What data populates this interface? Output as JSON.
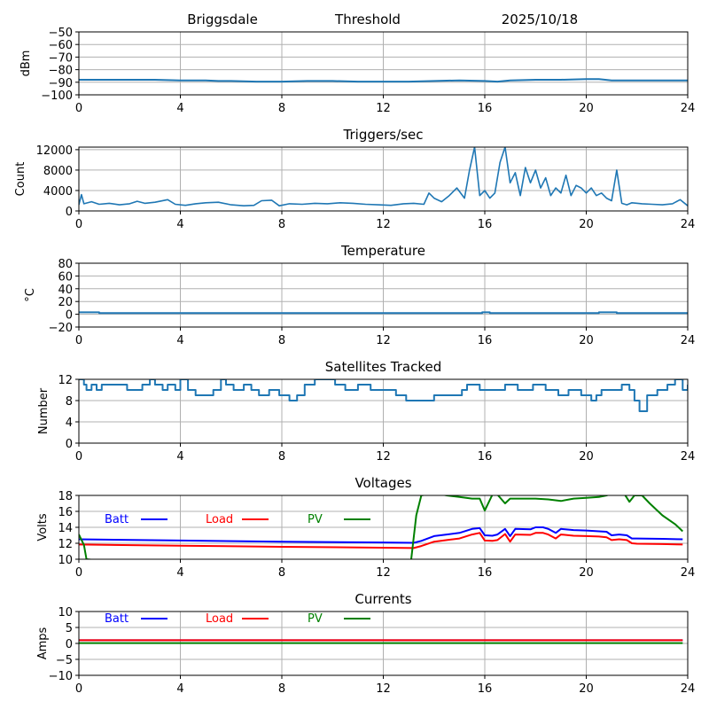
{
  "header": {
    "station": "Briggsdale",
    "mode": "Threshold",
    "date": "2025/10/18"
  },
  "chart_data": [
    {
      "id": "rssi",
      "type": "line",
      "title": "",
      "xlabel": "",
      "ylabel": "dBm",
      "xlim": [
        0,
        24
      ],
      "ylim": [
        -100,
        -50
      ],
      "xticks": [
        0,
        4,
        8,
        12,
        16,
        20,
        24
      ],
      "yticks": [
        -100,
        -90,
        -80,
        -70,
        -60,
        -50
      ],
      "ytick_labels": [
        "−100",
        "−90",
        "−80",
        "−70",
        "−60",
        "−50"
      ],
      "grid": true,
      "series": [
        {
          "name": "dBm",
          "color": "#1f77b4",
          "x": [
            0,
            1,
            2,
            3,
            4,
            5,
            5.5,
            6,
            7,
            8,
            9,
            10,
            11,
            12,
            13,
            14,
            15,
            16,
            16.5,
            17,
            18,
            19,
            20,
            20.5,
            21,
            22,
            23,
            24
          ],
          "y": [
            -88,
            -88,
            -88,
            -88,
            -88.5,
            -88.5,
            -89,
            -89,
            -89.5,
            -89.5,
            -89,
            -89,
            -89.5,
            -89.5,
            -89.5,
            -89,
            -88.5,
            -89,
            -89.5,
            -88.5,
            -88,
            -88,
            -87.5,
            -87.5,
            -88.5,
            -88.5,
            -88.5,
            -88.5
          ]
        }
      ]
    },
    {
      "id": "triggers",
      "type": "line",
      "title": "Triggers/sec",
      "xlabel": "",
      "ylabel": "Count",
      "xlim": [
        0,
        24
      ],
      "ylim": [
        0,
        12500
      ],
      "xticks": [
        0,
        4,
        8,
        12,
        16,
        20,
        24
      ],
      "yticks": [
        0,
        4000,
        8000,
        12000
      ],
      "ytick_labels": [
        "0",
        "4000",
        "8000",
        "12000"
      ],
      "grid": true,
      "series": [
        {
          "name": "Count",
          "color": "#1f77b4",
          "x": [
            0,
            0.1,
            0.2,
            0.5,
            0.8,
            1.2,
            1.6,
            2.0,
            2.3,
            2.6,
            3.0,
            3.5,
            3.8,
            4.2,
            4.6,
            5.0,
            5.5,
            6.0,
            6.5,
            6.9,
            7.2,
            7.6,
            7.9,
            8.3,
            8.8,
            9.3,
            9.8,
            10.3,
            10.8,
            11.3,
            11.8,
            12.3,
            12.8,
            13.2,
            13.6,
            13.8,
            14.0,
            14.3,
            14.6,
            14.9,
            15.2,
            15.4,
            15.6,
            15.8,
            16.0,
            16.2,
            16.4,
            16.6,
            16.8,
            17.0,
            17.2,
            17.4,
            17.6,
            17.8,
            18.0,
            18.2,
            18.4,
            18.6,
            18.8,
            19.0,
            19.2,
            19.4,
            19.6,
            19.8,
            20.0,
            20.2,
            20.4,
            20.6,
            20.8,
            21.0,
            21.2,
            21.4,
            21.6,
            21.8,
            22.2,
            22.6,
            23.0,
            23.4,
            23.7,
            24.0
          ],
          "y": [
            1200,
            3200,
            1400,
            1800,
            1300,
            1500,
            1200,
            1400,
            1900,
            1500,
            1700,
            2200,
            1300,
            1100,
            1400,
            1600,
            1700,
            1200,
            1000,
            1100,
            2000,
            2100,
            1000,
            1400,
            1300,
            1500,
            1400,
            1600,
            1500,
            1300,
            1200,
            1100,
            1400,
            1500,
            1300,
            3500,
            2500,
            1800,
            3000,
            4500,
            2500,
            8000,
            12500,
            3000,
            4000,
            2500,
            3500,
            9500,
            12500,
            5500,
            7500,
            3000,
            8500,
            5500,
            8000,
            4500,
            6500,
            3000,
            4500,
            3500,
            7000,
            3000,
            5000,
            4500,
            3500,
            4500,
            3000,
            3500,
            2500,
            2000,
            8000,
            1500,
            1200,
            1600,
            1400,
            1300,
            1200,
            1400,
            2200,
            1000
          ]
        }
      ]
    },
    {
      "id": "temperature",
      "type": "line",
      "title": "Temperature",
      "xlabel": "",
      "ylabel": "°C",
      "xlim": [
        0,
        24
      ],
      "ylim": [
        -20,
        80
      ],
      "xticks": [
        0,
        4,
        8,
        12,
        16,
        20,
        24
      ],
      "yticks": [
        -20,
        0,
        20,
        40,
        60,
        80
      ],
      "ytick_labels": [
        "−20",
        "0",
        "20",
        "40",
        "60",
        "80"
      ],
      "grid": true,
      "series": [
        {
          "name": "°C",
          "color": "#1f77b4",
          "x": [
            0,
            0.8,
            0.8,
            15.9,
            15.9,
            16.2,
            16.2,
            20.5,
            20.5,
            21.2,
            21.2,
            24
          ],
          "y": [
            3,
            3,
            2,
            2,
            3,
            3,
            2,
            2,
            3,
            3,
            2,
            2
          ]
        }
      ]
    },
    {
      "id": "satellites",
      "type": "line",
      "title": "Satellites Tracked",
      "xlabel": "",
      "ylabel": "Number",
      "xlim": [
        0,
        24
      ],
      "ylim": [
        0,
        12
      ],
      "xticks": [
        0,
        4,
        8,
        12,
        16,
        20,
        24
      ],
      "yticks": [
        0,
        4,
        8,
        12
      ],
      "ytick_labels": [
        "0",
        "4",
        "8",
        "12"
      ],
      "grid": true,
      "series": [
        {
          "name": "Number",
          "color": "#1f77b4",
          "step": true,
          "x": [
            0,
            0.2,
            0.3,
            0.5,
            0.7,
            0.9,
            1.1,
            1.9,
            2.5,
            2.8,
            3.0,
            3.3,
            3.5,
            3.8,
            4.0,
            4.3,
            4.6,
            5.3,
            5.6,
            5.8,
            6.1,
            6.5,
            6.8,
            7.1,
            7.5,
            7.9,
            8.3,
            8.6,
            8.9,
            9.3,
            9.7,
            10.1,
            10.5,
            11.0,
            11.5,
            12.0,
            12.5,
            12.9,
            13.5,
            14.0,
            14.5,
            15.1,
            15.3,
            15.8,
            16.2,
            16.8,
            17.3,
            17.9,
            18.4,
            18.9,
            19.3,
            19.8,
            20.2,
            20.4,
            20.6,
            21.0,
            21.4,
            21.7,
            21.9,
            22.1,
            22.4,
            22.8,
            23.2,
            23.5,
            23.8,
            24.0
          ],
          "y": [
            12,
            11,
            10,
            11,
            10,
            11,
            11,
            10,
            11,
            12,
            11,
            10,
            11,
            10,
            12,
            10,
            9,
            10,
            12,
            11,
            10,
            11,
            10,
            9,
            10,
            9,
            8,
            9,
            11,
            12,
            12,
            11,
            10,
            11,
            10,
            10,
            9,
            8,
            8,
            9,
            9,
            10,
            11,
            10,
            10,
            11,
            10,
            11,
            10,
            9,
            10,
            9,
            8,
            9,
            10,
            10,
            11,
            10,
            8,
            6,
            9,
            10,
            11,
            12,
            10,
            11
          ]
        }
      ]
    },
    {
      "id": "voltages",
      "type": "line",
      "title": "Voltages",
      "xlabel": "",
      "ylabel": "Volts",
      "xlim": [
        0,
        24
      ],
      "ylim": [
        10,
        18
      ],
      "xticks": [
        0,
        4,
        8,
        12,
        16,
        20,
        24
      ],
      "yticks": [
        10,
        12,
        14,
        16,
        18
      ],
      "ytick_labels": [
        "10",
        "12",
        "14",
        "16",
        "18"
      ],
      "grid": true,
      "legend": {
        "placement": "top-left",
        "orientation": "horizontal"
      },
      "series": [
        {
          "name": "Batt",
          "color": "#0000ff",
          "x": [
            0,
            4,
            8,
            12,
            13.2,
            13.5,
            14,
            14.5,
            15,
            15.5,
            15.8,
            16,
            16.3,
            16.5,
            16.8,
            17,
            17.2,
            17.8,
            18,
            18.3,
            18.5,
            18.8,
            19,
            19.5,
            20,
            20.5,
            20.8,
            21,
            21.3,
            21.6,
            21.8,
            22,
            23,
            23.8
          ],
          "y": [
            12.5,
            12.35,
            12.2,
            12.1,
            12.05,
            12.3,
            12.9,
            13.1,
            13.3,
            13.8,
            13.9,
            13.0,
            12.95,
            13.1,
            13.8,
            12.9,
            13.8,
            13.75,
            14.0,
            14.0,
            13.8,
            13.3,
            13.8,
            13.65,
            13.6,
            13.5,
            13.45,
            13.0,
            13.1,
            13.0,
            12.6,
            12.6,
            12.55,
            12.5
          ]
        },
        {
          "name": "Load",
          "color": "#ff0000",
          "x": [
            0,
            4,
            8,
            12,
            13.2,
            13.5,
            14,
            14.5,
            15,
            15.5,
            15.8,
            16,
            16.3,
            16.5,
            16.8,
            17,
            17.2,
            17.8,
            18,
            18.3,
            18.5,
            18.8,
            19,
            19.5,
            20,
            20.5,
            20.8,
            21,
            21.3,
            21.6,
            21.8,
            22,
            23,
            23.8
          ],
          "y": [
            11.85,
            11.7,
            11.55,
            11.45,
            11.4,
            11.65,
            12.2,
            12.4,
            12.6,
            13.1,
            13.3,
            12.35,
            12.3,
            12.4,
            13.15,
            12.2,
            13.1,
            13.05,
            13.3,
            13.3,
            13.1,
            12.6,
            13.1,
            12.95,
            12.9,
            12.85,
            12.75,
            12.4,
            12.5,
            12.4,
            12.0,
            11.95,
            11.9,
            11.85
          ]
        },
        {
          "name": "PV",
          "color": "#008000",
          "x": [
            0,
            0.2,
            0.3,
            12.8,
            13.1,
            13.3,
            13.5,
            14,
            14.5,
            15,
            15.5,
            15.8,
            16,
            16.3,
            16.5,
            16.8,
            17,
            17.2,
            17.5,
            18,
            18.5,
            19,
            19.5,
            20,
            20.5,
            20.8,
            21,
            21.5,
            21.7,
            21.9,
            22.2,
            22.5,
            23,
            23.5,
            23.8
          ],
          "y": [
            13.1,
            11.8,
            10.0,
            6.0,
            10.0,
            15.5,
            18.0,
            18.3,
            18.0,
            17.8,
            17.6,
            17.6,
            16.1,
            18.1,
            18.1,
            17.0,
            17.6,
            17.6,
            17.6,
            17.6,
            17.5,
            17.3,
            17.6,
            17.7,
            17.8,
            18.0,
            18.2,
            18.2,
            17.2,
            18.0,
            18.0,
            17.0,
            15.5,
            14.4,
            13.5
          ]
        }
      ]
    },
    {
      "id": "currents",
      "type": "line",
      "title": "Currents",
      "xlabel": "",
      "ylabel": "Amps",
      "xlim": [
        0,
        24
      ],
      "ylim": [
        -10,
        10
      ],
      "xticks": [
        0,
        4,
        8,
        12,
        16,
        20,
        24
      ],
      "yticks": [
        -10,
        -5,
        0,
        5,
        10
      ],
      "ytick_labels": [
        "−10",
        "−5",
        "0",
        "5",
        "10"
      ],
      "grid": true,
      "legend": {
        "placement": "top-left",
        "orientation": "horizontal"
      },
      "series": [
        {
          "name": "Batt",
          "color": "#0000ff",
          "x": [
            0,
            23.8
          ],
          "y": [
            1.0,
            1.0
          ]
        },
        {
          "name": "Load",
          "color": "#ff0000",
          "x": [
            0,
            23.8
          ],
          "y": [
            1.0,
            1.0
          ]
        },
        {
          "name": "PV",
          "color": "#008000",
          "x": [
            0,
            23.8
          ],
          "y": [
            0.1,
            0.1
          ]
        }
      ]
    }
  ]
}
